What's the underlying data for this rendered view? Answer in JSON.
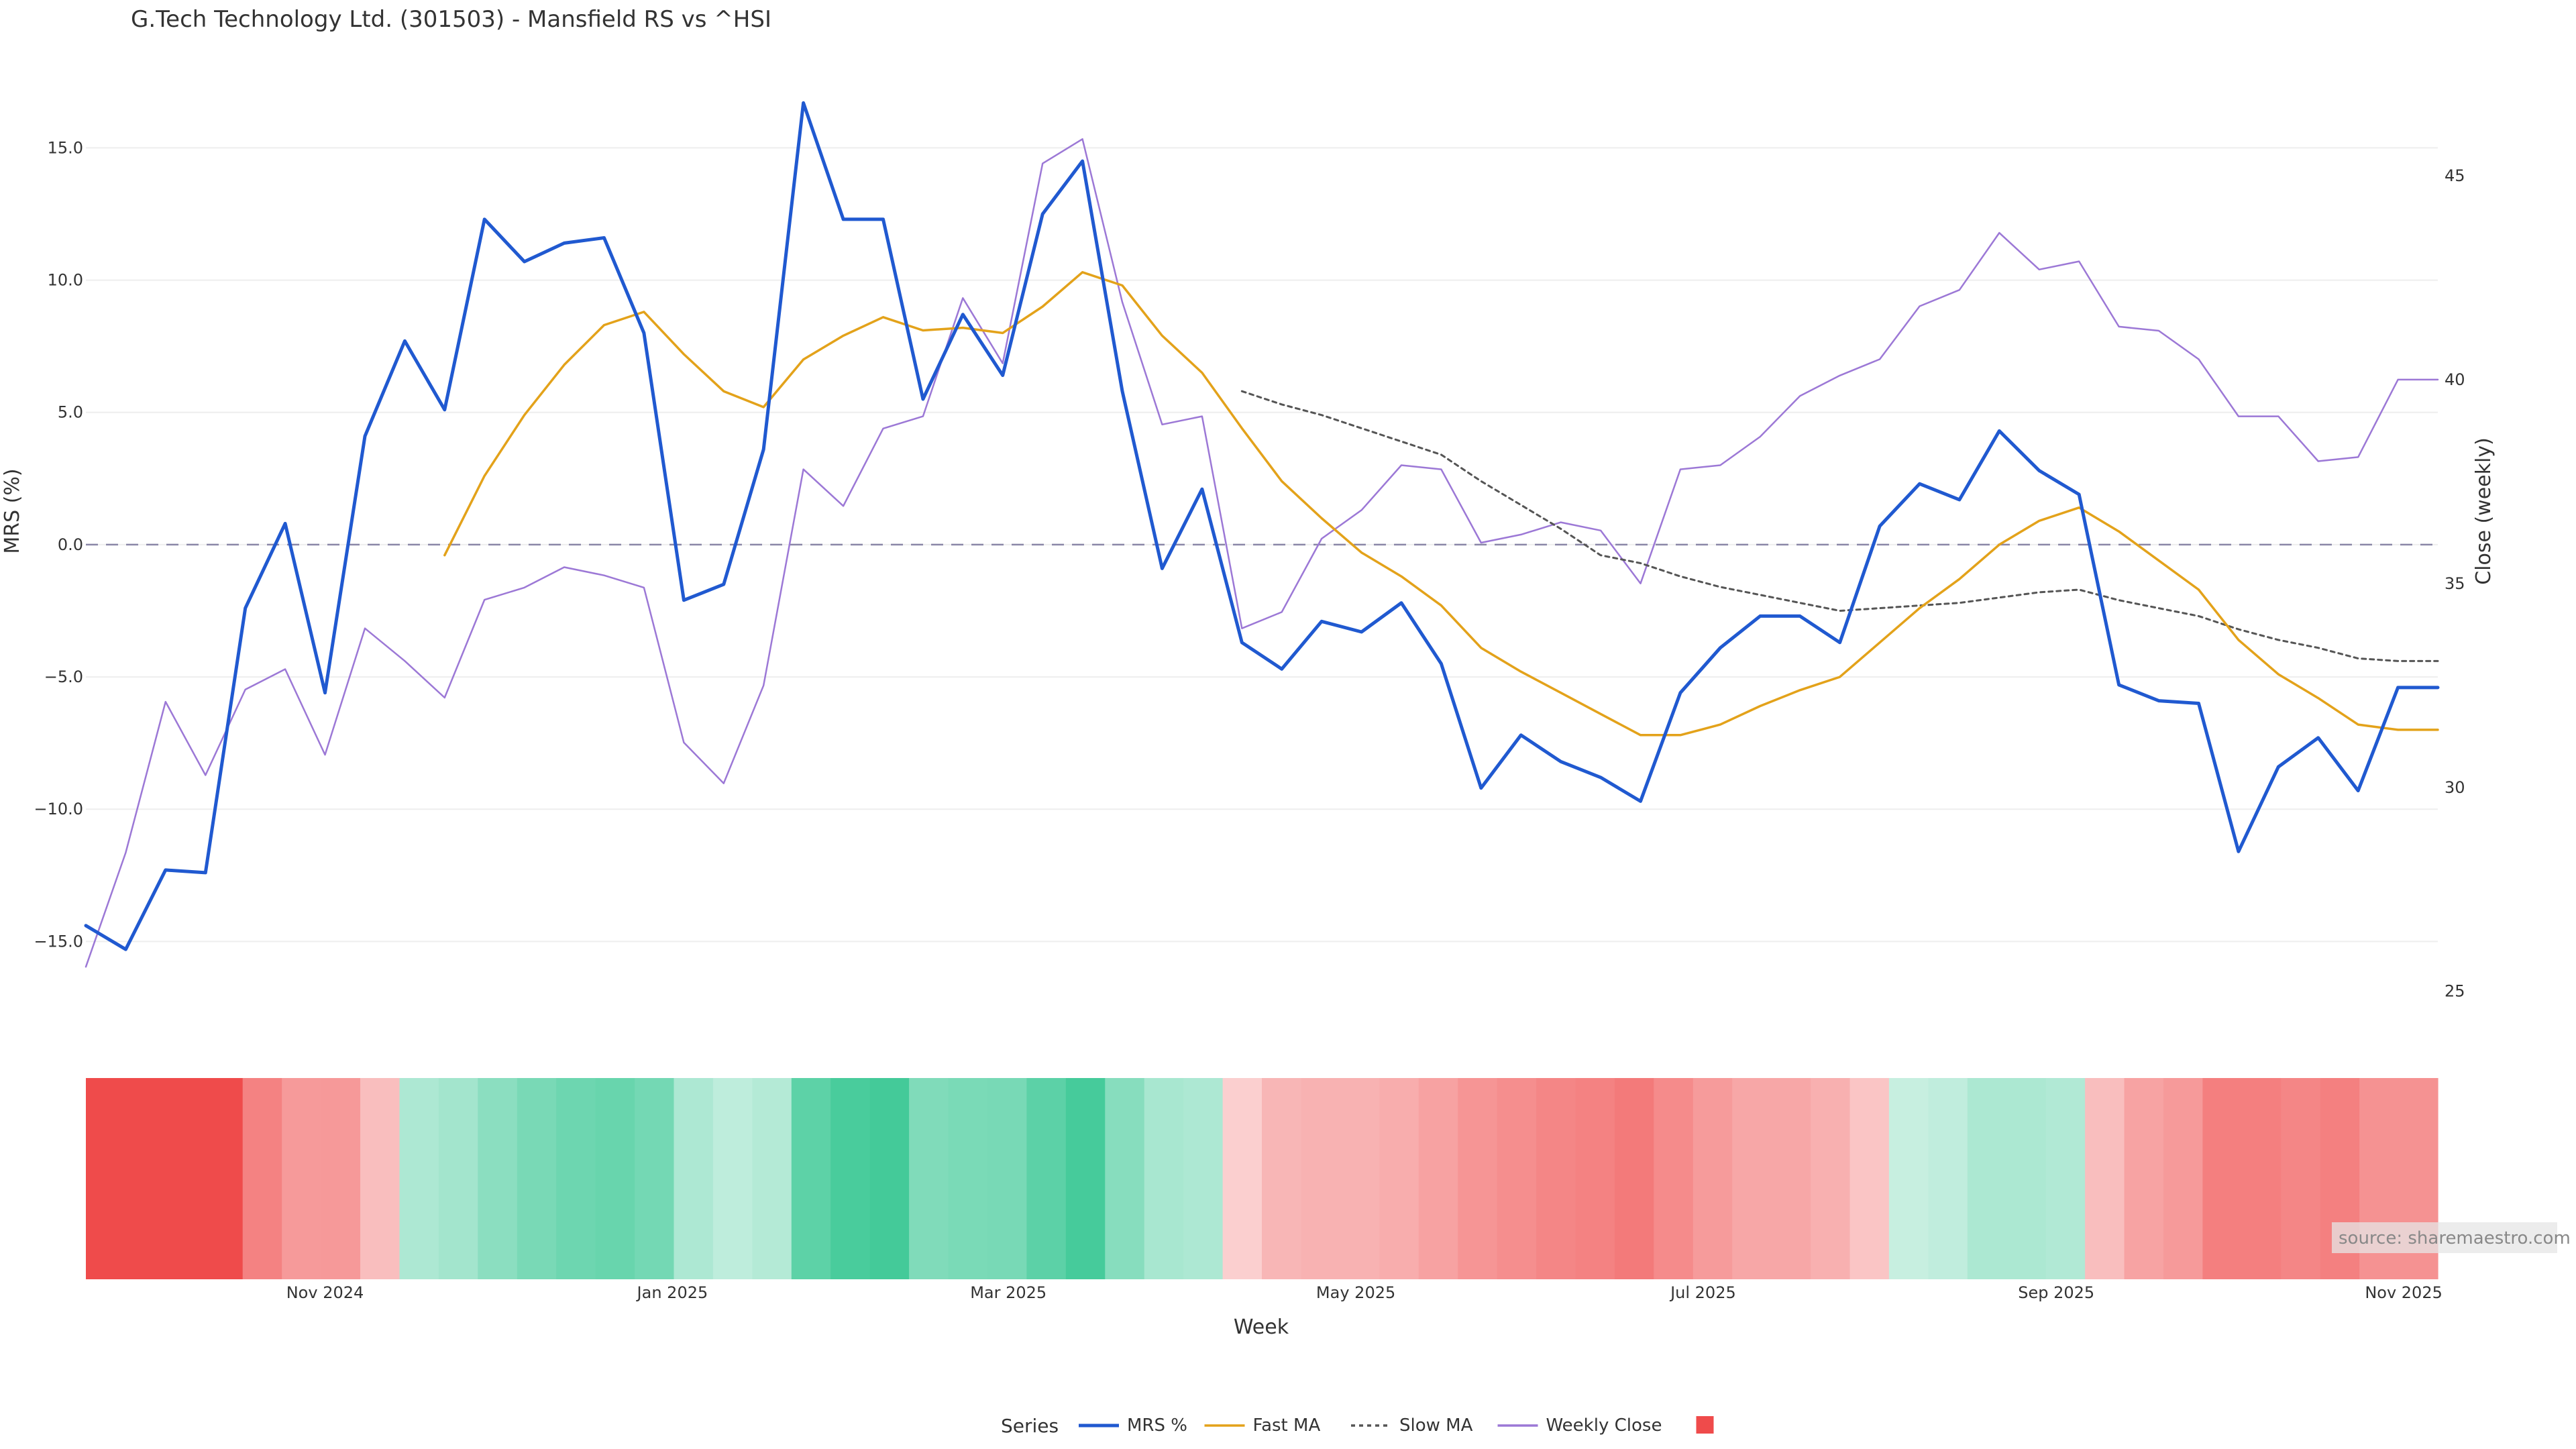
{
  "chart_data": {
    "type": "line",
    "title": "G.Tech Technology Ltd. (301503) - Mansfield RS vs ^HSI",
    "ylabel": "MRS (%)",
    "y2label": "Close (weekly)",
    "xlabel": "Week",
    "ylim": [
      -17.5,
      17.8
    ],
    "y2lim": [
      24.6,
      47.5
    ],
    "yticks": [
      "15.0",
      "10.0",
      "5.0",
      "0.0",
      "−5.0",
      "−10.0",
      "−15.0"
    ],
    "yticks_values": [
      15,
      10,
      5,
      0,
      -5,
      -10,
      -15
    ],
    "y2ticks": [
      "45",
      "40",
      "35",
      "30",
      "25"
    ],
    "y2ticks_values": [
      45,
      40,
      35,
      30,
      25
    ],
    "x_axis": {
      "start": "2024-09-20",
      "end": "2025-11-07",
      "ticks": [
        {
          "label": "Nov 2024",
          "date": "2024-11-01"
        },
        {
          "label": "Jan 2025",
          "date": "2025-01-01"
        },
        {
          "label": "Mar 2025",
          "date": "2025-03-01"
        },
        {
          "label": "May 2025",
          "date": "2025-05-01"
        },
        {
          "label": "Jul 2025",
          "date": "2025-07-01"
        },
        {
          "label": "Sep 2025",
          "date": "2025-09-01"
        },
        {
          "label": "Nov 2025",
          "date": "2025-11-01"
        }
      ]
    },
    "zero_line": 0,
    "grid": "horizontal",
    "legend_title": "Series",
    "legend_position": "bottom",
    "source": "source: sharemaestro.com",
    "colors": {
      "mrs": "#2059d0",
      "fast_ma": "#e3a21a",
      "slow_ma": "#555555",
      "weekly_close": "#9c78d6",
      "positive": "#2dc48d",
      "negative": "#ef4b4b"
    },
    "dates": [
      "2024-09-20",
      "2024-09-27",
      "2024-10-04",
      "2024-10-11",
      "2024-10-18",
      "2024-10-25",
      "2024-11-01",
      "2024-11-08",
      "2024-11-15",
      "2024-11-22",
      "2024-11-29",
      "2024-12-06",
      "2024-12-13",
      "2024-12-20",
      "2024-12-27",
      "2025-01-03",
      "2025-01-10",
      "2025-01-17",
      "2025-01-24",
      "2025-01-31",
      "2025-02-07",
      "2025-02-14",
      "2025-02-21",
      "2025-02-28",
      "2025-03-07",
      "2025-03-14",
      "2025-03-21",
      "2025-03-28",
      "2025-04-04",
      "2025-04-11",
      "2025-04-18",
      "2025-04-25",
      "2025-05-02",
      "2025-05-09",
      "2025-05-16",
      "2025-05-23",
      "2025-05-30",
      "2025-06-06",
      "2025-06-13",
      "2025-06-20",
      "2025-06-27",
      "2025-07-04",
      "2025-07-11",
      "2025-07-18",
      "2025-07-25",
      "2025-08-01",
      "2025-08-08",
      "2025-08-15",
      "2025-08-22",
      "2025-08-29",
      "2025-09-05",
      "2025-09-12",
      "2025-09-19",
      "2025-09-26",
      "2025-10-03",
      "2025-10-10",
      "2025-10-17",
      "2025-10-24",
      "2025-10-31",
      "2025-11-07"
    ],
    "series": [
      {
        "name": "MRS %",
        "key": "mrs",
        "style": "solid",
        "axis": "left",
        "values": [
          -14.4,
          -15.3,
          -12.3,
          -12.4,
          -2.4,
          0.8,
          -5.6,
          4.1,
          7.7,
          5.1,
          12.3,
          10.7,
          11.4,
          11.6,
          8.0,
          -2.1,
          -1.5,
          3.6,
          16.7,
          12.3,
          12.3,
          5.5,
          8.7,
          6.4,
          12.5,
          14.5,
          5.8,
          -0.9,
          2.1,
          -3.7,
          -4.7,
          -2.9,
          -3.3,
          -2.2,
          -4.5,
          -9.2,
          -7.2,
          -8.2,
          -8.8,
          -9.7,
          -5.6,
          -3.9,
          -2.7,
          -2.7,
          -3.7,
          0.7,
          2.3,
          1.7,
          4.3,
          2.8,
          1.9,
          -5.3,
          -5.9,
          -6.0,
          -11.6,
          -8.4,
          -7.3,
          -9.3,
          -5.4,
          -5.4
        ]
      },
      {
        "name": "Fast MA",
        "key": "fast_ma",
        "style": "solid",
        "axis": "left",
        "values": [
          null,
          null,
          null,
          null,
          null,
          null,
          null,
          null,
          null,
          -0.4,
          2.6,
          4.9,
          6.8,
          8.3,
          8.8,
          7.2,
          5.8,
          5.2,
          7.0,
          7.9,
          8.6,
          8.1,
          8.2,
          8.0,
          9.0,
          10.3,
          9.8,
          7.9,
          6.5,
          4.4,
          2.4,
          1.0,
          -0.3,
          -1.2,
          -2.3,
          -3.9,
          -4.8,
          -5.6,
          -6.4,
          -7.2,
          -7.2,
          -6.8,
          -6.1,
          -5.5,
          -5.0,
          -3.7,
          -2.4,
          -1.3,
          0.0,
          0.9,
          1.4,
          0.5,
          -0.6,
          -1.7,
          -3.6,
          -4.9,
          -5.8,
          -6.8,
          -7.0,
          -7.0
        ]
      },
      {
        "name": "Slow MA",
        "key": "slow_ma",
        "style": "dotted",
        "axis": "left",
        "values": [
          null,
          null,
          null,
          null,
          null,
          null,
          null,
          null,
          null,
          null,
          null,
          null,
          null,
          null,
          null,
          null,
          null,
          null,
          null,
          null,
          null,
          null,
          null,
          null,
          null,
          null,
          null,
          null,
          null,
          5.8,
          5.3,
          4.9,
          4.4,
          3.9,
          3.4,
          2.4,
          1.5,
          0.6,
          -0.4,
          -0.7,
          -1.2,
          -1.6,
          -1.9,
          -2.2,
          -2.5,
          -2.4,
          -2.3,
          -2.2,
          -2.0,
          -1.8,
          -1.7,
          -2.1,
          -2.4,
          -2.7,
          -3.2,
          -3.6,
          -3.9,
          -4.3,
          -4.4,
          -4.4
        ]
      },
      {
        "name": "Weekly Close",
        "key": "weekly_close",
        "style": "solid",
        "axis": "right",
        "values": [
          25.6,
          28.4,
          32.1,
          30.3,
          32.4,
          32.9,
          30.8,
          33.9,
          33.1,
          32.2,
          34.6,
          34.9,
          35.4,
          35.2,
          34.9,
          31.1,
          30.1,
          32.5,
          37.8,
          36.9,
          38.8,
          39.1,
          42.0,
          40.4,
          45.3,
          45.9,
          41.9,
          38.9,
          39.1,
          33.9,
          34.3,
          36.1,
          36.8,
          37.9,
          37.8,
          36.0,
          36.2,
          36.5,
          36.3,
          35.0,
          37.8,
          37.9,
          38.6,
          39.6,
          40.1,
          40.5,
          41.8,
          42.2,
          43.6,
          42.7,
          42.9,
          41.3,
          41.2,
          40.5,
          39.1,
          39.1,
          38.0,
          38.1,
          40.0,
          40.0
        ]
      }
    ],
    "heatmap": {
      "values": [
        -15.0,
        -15.0,
        -15.0,
        -15.0,
        -9.0,
        -6.5,
        -6.6,
        -3.0,
        3.5,
        4.3,
        6.3,
        7.9,
        9.0,
        9.4,
        8.3,
        3.5,
        2.2,
        3.0,
        10.4,
        12.3,
        12.8,
        7.3,
        7.8,
        8.0,
        10.5,
        12.6,
        6.7,
        3.9,
        3.5,
        -1.6,
        -3.8,
        -4.1,
        -4.1,
        -4.6,
        -5.7,
        -7.0,
        -7.7,
        -8.5,
        -8.9,
        -9.8,
        -8.0,
        -6.4,
        -5.2,
        -5.2,
        -4.3,
        -2.4,
        1.6,
        2.1,
        3.6,
        3.6,
        3.2,
        -3.0,
        -5.6,
        -6.5,
        -9.3,
        -9.3,
        -8.5,
        -9.2,
        -7.3,
        -7.3
      ]
    }
  }
}
